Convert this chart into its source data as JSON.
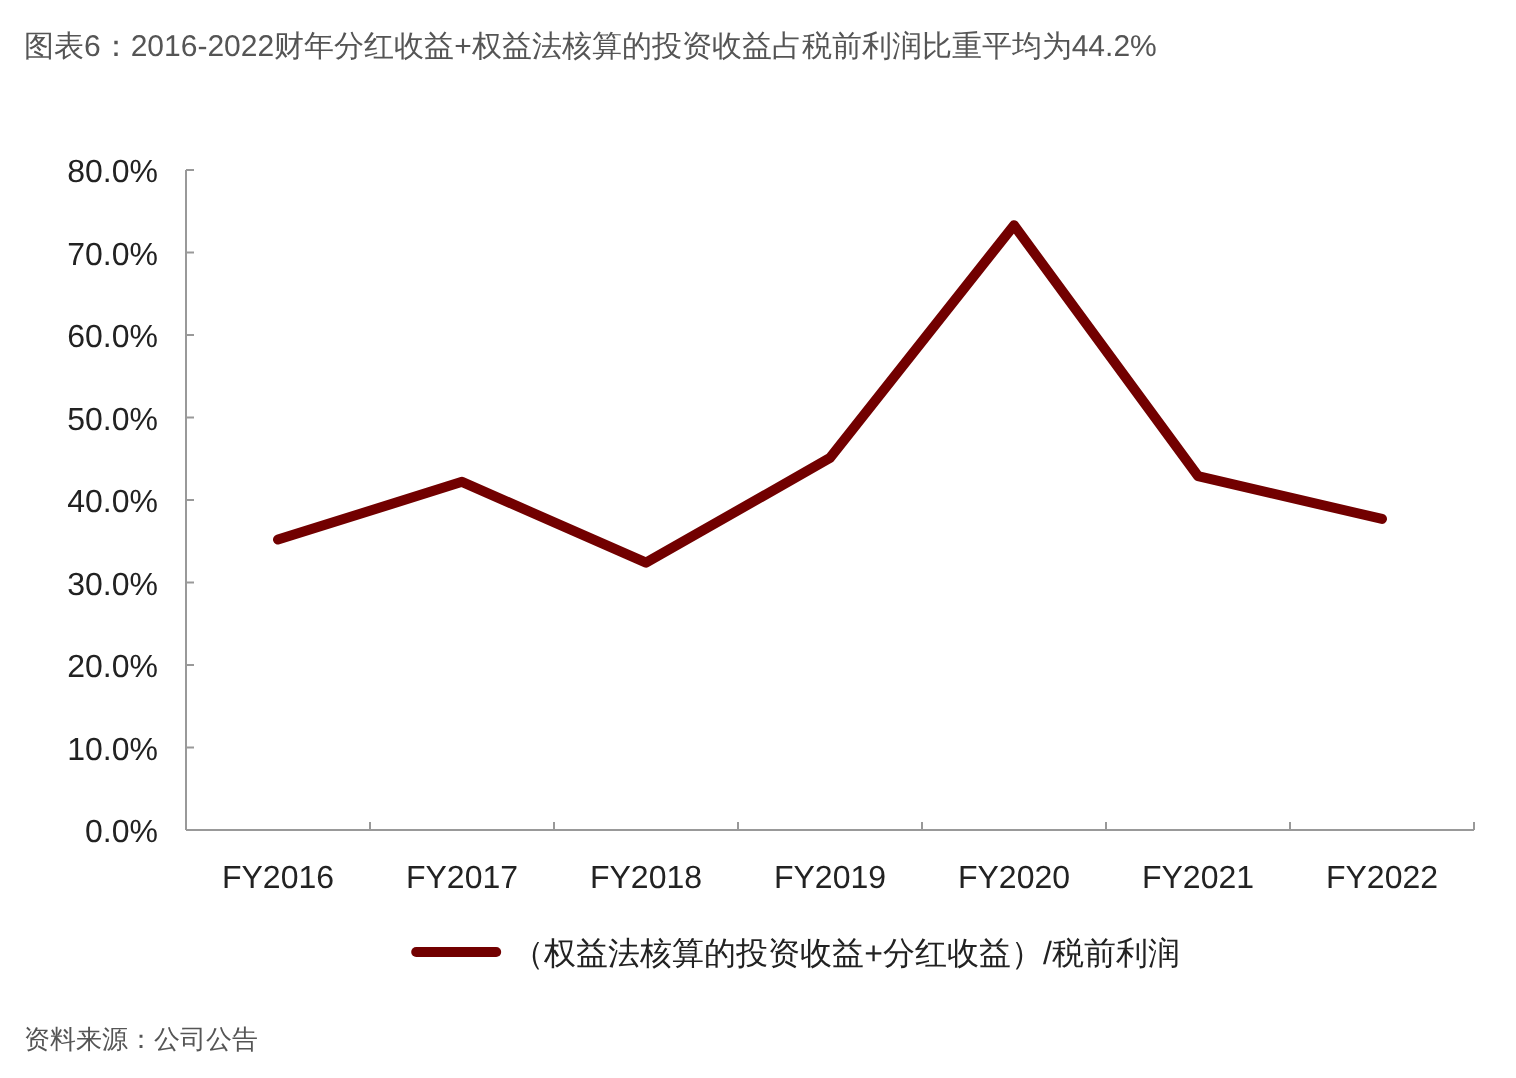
{
  "chart_data": {
    "type": "line",
    "title": "图表6：2016-2022财年分红收益+权益法核算的投资收益占税前利润比重平均为44.2%",
    "categories": [
      "FY2016",
      "FY2017",
      "FY2018",
      "FY2019",
      "FY2020",
      "FY2021",
      "FY2022"
    ],
    "series": [
      {
        "name": "（权益法核算的投资收益+分红收益）/税前利润",
        "color": "#720000",
        "values": [
          35.2,
          42.2,
          32.4,
          45.1,
          73.3,
          42.9,
          37.7
        ]
      }
    ],
    "ylim": [
      0,
      80
    ],
    "yticks": [
      {
        "value": 0,
        "label": "0.0%"
      },
      {
        "value": 10,
        "label": "10.0%"
      },
      {
        "value": 20,
        "label": "20.0%"
      },
      {
        "value": 30,
        "label": "30.0%"
      },
      {
        "value": 40,
        "label": "40.0%"
      },
      {
        "value": 50,
        "label": "50.0%"
      },
      {
        "value": 60,
        "label": "60.0%"
      },
      {
        "value": 70,
        "label": "70.0%"
      },
      {
        "value": 80,
        "label": "80.0%"
      }
    ],
    "grid": false,
    "legend": "bottom",
    "marker": "none",
    "line_style": "solid",
    "annotations": [
      "资料来源：公司公告"
    ]
  }
}
